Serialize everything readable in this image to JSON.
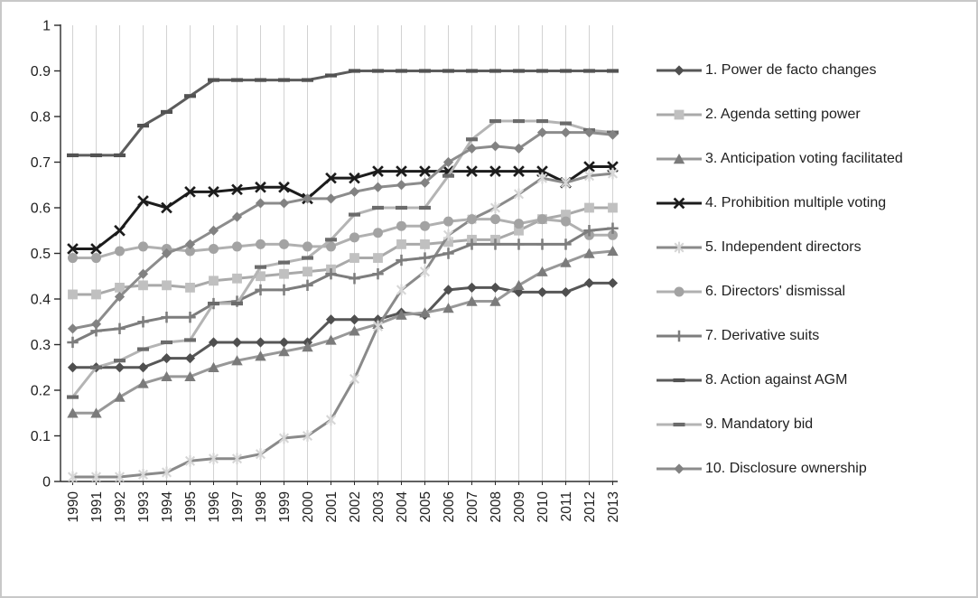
{
  "figure": {
    "background": "#ffffff",
    "border_color": "#c8c8c8",
    "axis_color": "#2b2b2b",
    "gridline_color": "#d2d2d2",
    "tick_label_color": "#1f1f1f",
    "legend_text_color": "#1f1f1f"
  },
  "chart_data": {
    "type": "line",
    "title": "",
    "xlabel": "",
    "ylabel": "",
    "ylim": [
      0,
      1
    ],
    "grid": "vertical-only",
    "legend_position": "right",
    "x": [
      1990,
      1991,
      1992,
      1993,
      1994,
      1995,
      1996,
      1997,
      1998,
      1999,
      2000,
      2001,
      2002,
      2003,
      2004,
      2005,
      2006,
      2007,
      2008,
      2009,
      2010,
      2011,
      2012,
      2013
    ],
    "x_tick_labels": [
      "1990",
      "1991",
      "1992",
      "1993",
      "1994",
      "1995",
      "1996",
      "1997",
      "1998",
      "1999",
      "2000",
      "2001",
      "2002",
      "2003",
      "2004",
      "2005",
      "2006",
      "2007",
      "2008",
      "2009",
      "2010",
      "2011",
      "2012",
      "2013"
    ],
    "y_ticks": [
      0,
      0.1,
      0.2,
      0.3,
      0.4,
      0.5,
      0.6,
      0.7,
      0.8,
      0.9,
      1
    ],
    "y_tick_labels": [
      "0",
      "0.1",
      "0.2",
      "0.3",
      "0.4",
      "0.5",
      "0.6",
      "0.7",
      "0.8",
      "0.9",
      "1"
    ],
    "series": [
      {
        "name": "1. Power de facto changes",
        "marker": "diamond",
        "line_color": "#575757",
        "marker_color": "#4f4f4f",
        "values": [
          0.25,
          0.25,
          0.25,
          0.25,
          0.27,
          0.27,
          0.305,
          0.305,
          0.305,
          0.305,
          0.305,
          0.355,
          0.355,
          0.355,
          0.37,
          0.365,
          0.42,
          0.425,
          0.425,
          0.415,
          0.415,
          0.415,
          0.435,
          0.435
        ]
      },
      {
        "name": "2. Agenda setting power",
        "marker": "square",
        "line_color": "#a9a9a9",
        "marker_color": "#c0c0c0",
        "values": [
          0.41,
          0.41,
          0.425,
          0.43,
          0.43,
          0.425,
          0.44,
          0.445,
          0.45,
          0.455,
          0.46,
          0.465,
          0.49,
          0.49,
          0.52,
          0.52,
          0.525,
          0.53,
          0.53,
          0.55,
          0.575,
          0.585,
          0.6,
          0.6
        ]
      },
      {
        "name": "3. Anticipation voting facilitated",
        "marker": "triangle",
        "line_color": "#989898",
        "marker_color": "#7b7b7b",
        "values": [
          0.15,
          0.15,
          0.185,
          0.215,
          0.23,
          0.23,
          0.25,
          0.265,
          0.275,
          0.285,
          0.295,
          0.31,
          0.33,
          0.345,
          0.365,
          0.37,
          0.38,
          0.395,
          0.395,
          0.43,
          0.46,
          0.48,
          0.5,
          0.505
        ]
      },
      {
        "name": "4. Prohibition multiple voting",
        "marker": "x",
        "line_color": "#1c1c1c",
        "marker_color": "#1c1c1c",
        "values": [
          0.51,
          0.51,
          0.55,
          0.615,
          0.6,
          0.635,
          0.635,
          0.64,
          0.645,
          0.645,
          0.62,
          0.665,
          0.665,
          0.68,
          0.68,
          0.68,
          0.68,
          0.68,
          0.68,
          0.68,
          0.68,
          0.655,
          0.69,
          0.69
        ]
      },
      {
        "name": "5. Independent directors",
        "marker": "asterisk",
        "line_color": "#8a8a8a",
        "marker_color": "#d6d6d6",
        "values": [
          0.01,
          0.01,
          0.01,
          0.015,
          0.02,
          0.045,
          0.05,
          0.05,
          0.06,
          0.095,
          0.1,
          0.135,
          0.225,
          0.34,
          0.42,
          0.46,
          0.54,
          0.575,
          0.6,
          0.63,
          0.665,
          0.655,
          0.67,
          0.675
        ]
      },
      {
        "name": "6. Directors' dismissal",
        "marker": "circle",
        "line_color": "#b0b0b0",
        "marker_color": "#a3a3a3",
        "values": [
          0.49,
          0.49,
          0.505,
          0.515,
          0.51,
          0.505,
          0.51,
          0.515,
          0.52,
          0.52,
          0.515,
          0.515,
          0.535,
          0.545,
          0.56,
          0.56,
          0.57,
          0.575,
          0.575,
          0.565,
          0.575,
          0.57,
          0.54,
          0.54
        ]
      },
      {
        "name": "7. Derivative suits",
        "marker": "plus",
        "line_color": "#7d7d7d",
        "marker_color": "#7d7d7d",
        "values": [
          0.305,
          0.33,
          0.335,
          0.35,
          0.36,
          0.36,
          0.39,
          0.395,
          0.42,
          0.42,
          0.43,
          0.455,
          0.445,
          0.455,
          0.485,
          0.49,
          0.5,
          0.52,
          0.52,
          0.52,
          0.52,
          0.52,
          0.55,
          0.555
        ]
      },
      {
        "name": "8. Action against AGM",
        "marker": "dash",
        "line_color": "#5c5c5c",
        "marker_color": "#525252",
        "values": [
          0.715,
          0.715,
          0.715,
          0.78,
          0.81,
          0.845,
          0.88,
          0.88,
          0.88,
          0.88,
          0.88,
          0.89,
          0.9,
          0.9,
          0.9,
          0.9,
          0.9,
          0.9,
          0.9,
          0.9,
          0.9,
          0.9,
          0.9,
          0.9
        ]
      },
      {
        "name": "9. Mandatory bid",
        "marker": "dash",
        "line_color": "#b4b4b4",
        "marker_color": "#6b6b6b",
        "values": [
          0.185,
          0.25,
          0.265,
          0.29,
          0.305,
          0.31,
          0.39,
          0.39,
          0.47,
          0.48,
          0.49,
          0.53,
          0.585,
          0.6,
          0.6,
          0.6,
          0.67,
          0.75,
          0.79,
          0.79,
          0.79,
          0.785,
          0.77,
          0.765
        ]
      },
      {
        "name": "10. Disclosure ownership",
        "marker": "diamond",
        "line_color": "#8c8c8c",
        "marker_color": "#828282",
        "values": [
          0.335,
          0.345,
          0.405,
          0.455,
          0.5,
          0.52,
          0.55,
          0.58,
          0.61,
          0.61,
          0.62,
          0.62,
          0.635,
          0.645,
          0.65,
          0.655,
          0.7,
          0.73,
          0.735,
          0.73,
          0.765,
          0.765,
          0.765,
          0.76
        ]
      }
    ]
  },
  "legend": {
    "items": [
      "1. Power de facto changes",
      "2. Agenda setting power",
      "3. Anticipation voting facilitated",
      "4. Prohibition multiple voting",
      "5. Independent directors",
      "6. Directors' dismissal",
      "7. Derivative suits",
      "8. Action against AGM",
      "9. Mandatory bid",
      "10. Disclosure ownership"
    ]
  }
}
